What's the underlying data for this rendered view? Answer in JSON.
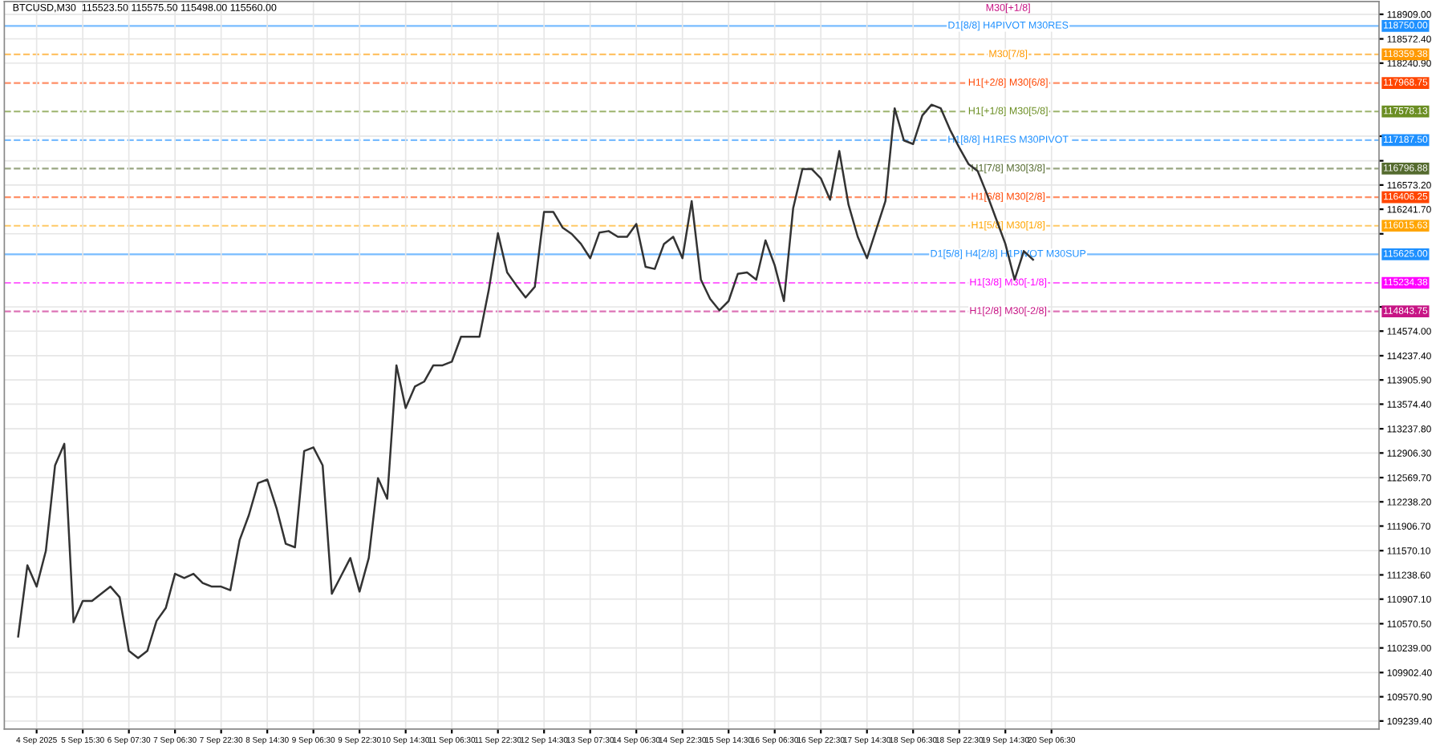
{
  "chart_data": {
    "type": "line",
    "title": "BTCUSD,M30  115523.50 115575.50 115498.00 115560.00",
    "categories": [
      null,
      null,
      "4 Sep 2025",
      null,
      null,
      null,
      null,
      "5 Sep 15:30",
      null,
      null,
      null,
      null,
      "6 Sep 07:30",
      null,
      null,
      null,
      null,
      "7 Sep 06:30",
      null,
      null,
      null,
      null,
      "7 Sep 22:30",
      null,
      null,
      null,
      null,
      "8 Sep 14:30",
      null,
      null,
      null,
      null,
      "9 Sep 06:30",
      null,
      null,
      null,
      null,
      "9 Sep 22:30",
      null,
      null,
      null,
      null,
      "10 Sep 14:30",
      null,
      null,
      null,
      null,
      "11 Sep 06:30",
      null,
      null,
      null,
      null,
      "11 Sep 22:30",
      null,
      null,
      null,
      null,
      "12 Sep 14:30",
      null,
      null,
      null,
      null,
      "13 Sep 07:30",
      null,
      null,
      null,
      null,
      "14 Sep 06:30",
      null,
      null,
      null,
      null,
      "14 Sep 22:30",
      null,
      null,
      null,
      null,
      "15 Sep 14:30",
      null,
      null,
      null,
      null,
      "16 Sep 06:30",
      null,
      null,
      null,
      null,
      "16 Sep 22:30",
      null,
      null,
      null,
      null,
      "17 Sep 14:30",
      null,
      null,
      null,
      null,
      "18 Sep 06:30",
      null,
      null,
      null,
      null,
      "18 Sep 22:30",
      null,
      null,
      null,
      null,
      "19 Sep 14:30",
      null,
      null,
      null,
      null,
      "20 Sep 06:30",
      null,
      null,
      null,
      null,
      null,
      null,
      null,
      null,
      null,
      null,
      null,
      null,
      null,
      null,
      null,
      null,
      null,
      null,
      null,
      null,
      null,
      null,
      null,
      null,
      null,
      null,
      null,
      null,
      null,
      null,
      null,
      null,
      null,
      null,
      null
    ],
    "series": [
      {
        "color": "#333333",
        "values": [
          110395,
          111371,
          111078,
          111567,
          112738,
          113032,
          110590,
          110883,
          110883,
          110980,
          111078,
          110932,
          110199,
          110101,
          110199,
          110609,
          110785,
          111254,
          111195,
          111254,
          111127,
          111078,
          111078,
          111029,
          111713,
          112055,
          112495,
          112543,
          112153,
          111664,
          111616,
          112934,
          112983,
          112738,
          110980,
          111225,
          111469,
          111010,
          111469,
          112563,
          112280,
          114106,
          113522,
          113815,
          113883,
          114106,
          114106,
          114155,
          114497,
          114497,
          114497,
          115132,
          115913,
          115376,
          115200,
          115034,
          115181,
          116206,
          116206,
          115991,
          115903,
          115767,
          115571,
          115923,
          115943,
          115865,
          115865,
          116040,
          115454,
          115425,
          115767,
          115865,
          115571,
          116353,
          115278,
          115015,
          114858,
          114985,
          115357,
          115376,
          115278,
          115816,
          115474,
          114985,
          116255,
          116792,
          116792,
          116665,
          116372,
          117037,
          116304,
          115865,
          115571,
          115962,
          116353,
          117623,
          117183,
          117134,
          117525,
          117672,
          117623,
          117330,
          117086,
          116860,
          116763,
          116450,
          116109,
          115767,
          115278,
          115669,
          115552,
          null,
          null,
          null,
          null,
          null,
          null,
          null,
          null,
          null,
          null,
          null,
          null,
          null,
          null,
          null,
          null,
          null,
          null,
          null,
          null,
          null,
          null,
          null,
          null,
          null,
          null,
          null,
          null,
          null,
          null,
          null,
          null,
          null,
          null,
          null,
          null,
          null
        ]
      }
    ],
    "ylim": [
      109130,
      119084
    ],
    "yticks": [
      {
        "value": 118909.0,
        "label": "118909.00"
      },
      {
        "value": 118572.4,
        "label": "118572.40"
      },
      {
        "value": 118240.9,
        "label": "118240.90"
      },
      {
        "value": 117241.3,
        "label": null
      },
      {
        "value": 116904.7,
        "label": null
      },
      {
        "value": 116573.2,
        "label": "116573.20"
      },
      {
        "value": 116241.7,
        "label": "116241.70"
      },
      {
        "value": 115905.5,
        "label": null
      },
      {
        "value": 114905.5,
        "label": null
      },
      {
        "value": 114574.0,
        "label": "114574.00"
      },
      {
        "value": 114237.4,
        "label": "114237.40"
      },
      {
        "value": 113905.9,
        "label": "113905.90"
      },
      {
        "value": 113574.4,
        "label": "113574.40"
      },
      {
        "value": 113237.8,
        "label": "113237.80"
      },
      {
        "value": 112906.3,
        "label": "112906.30"
      },
      {
        "value": 112569.7,
        "label": "112569.70"
      },
      {
        "value": 112238.2,
        "label": "112238.20"
      },
      {
        "value": 111906.7,
        "label": "111906.70"
      },
      {
        "value": 111570.1,
        "label": "111570.10"
      },
      {
        "value": 111238.6,
        "label": "111238.60"
      },
      {
        "value": 110907.1,
        "label": "110907.10"
      },
      {
        "value": 110570.5,
        "label": "110570.50"
      },
      {
        "value": 110239.0,
        "label": "110239.00"
      },
      {
        "value": 109902.4,
        "label": "109902.40"
      },
      {
        "value": 109570.9,
        "label": "109570.90"
      },
      {
        "value": 109239.4,
        "label": "109239.40"
      }
    ],
    "ref_lines": [
      {
        "axis": "y",
        "value": 118750.0,
        "label": "D1[8/8] H4PIVOT M30RES",
        "color": "#1e90ff",
        "line_style": "solid"
      },
      {
        "axis": "y",
        "value": 118359.38,
        "label": "M30[7/8]",
        "color": "#ff9900",
        "line_style": "dashed"
      },
      {
        "axis": "y",
        "value": 117968.75,
        "label": "H1[+2/8] M30[6/8]",
        "color": "#ff4500",
        "line_style": "dashed"
      },
      {
        "axis": "y",
        "value": 117578.13,
        "label": "H1[+1/8] M30[5/8]",
        "color": "#6b8e23",
        "line_style": "dashed"
      },
      {
        "axis": "y",
        "value": 117187.5,
        "label": "H1[8/8] H1RES M30PIVOT",
        "color": "#1e90ff",
        "line_style": "dashed"
      },
      {
        "axis": "y",
        "value": 116796.88,
        "label": "H1[7/8] M30[3/8]",
        "color": "#556b2f",
        "line_style": "dashed"
      },
      {
        "axis": "y",
        "value": 116406.25,
        "label": "H1[6/8] M30[2/8]",
        "color": "#ff4500",
        "line_style": "dashed"
      },
      {
        "axis": "y",
        "value": 116015.63,
        "label": "H1[5/8] M30[1/8]",
        "color": "#ffa500",
        "line_style": "dashed"
      },
      {
        "axis": "y",
        "value": 115625.0,
        "label": "D1[5/8] H4[2/8] H1PIVOT M30SUP",
        "color": "#1e90ff",
        "line_style": "solid"
      },
      {
        "axis": "y",
        "value": 115234.38,
        "label": "H1[3/8] M30[-1/8]",
        "color": "#ff00ff",
        "line_style": "dashed"
      },
      {
        "axis": "y",
        "value": 114843.75,
        "label": "H1[2/8] M30[-2/8]",
        "color": "#c71585",
        "line_style": "dashed"
      }
    ],
    "annotations": [
      "M30[+1/8]",
      "118750.00",
      "118359.38",
      "117968.75",
      "117578.13",
      "117187.50",
      "116796.88",
      "116406.25",
      "116015.63",
      "115625.00",
      "115234.38",
      "114843.75"
    ],
    "grid": true,
    "line_style": "solid",
    "marker": "none"
  }
}
